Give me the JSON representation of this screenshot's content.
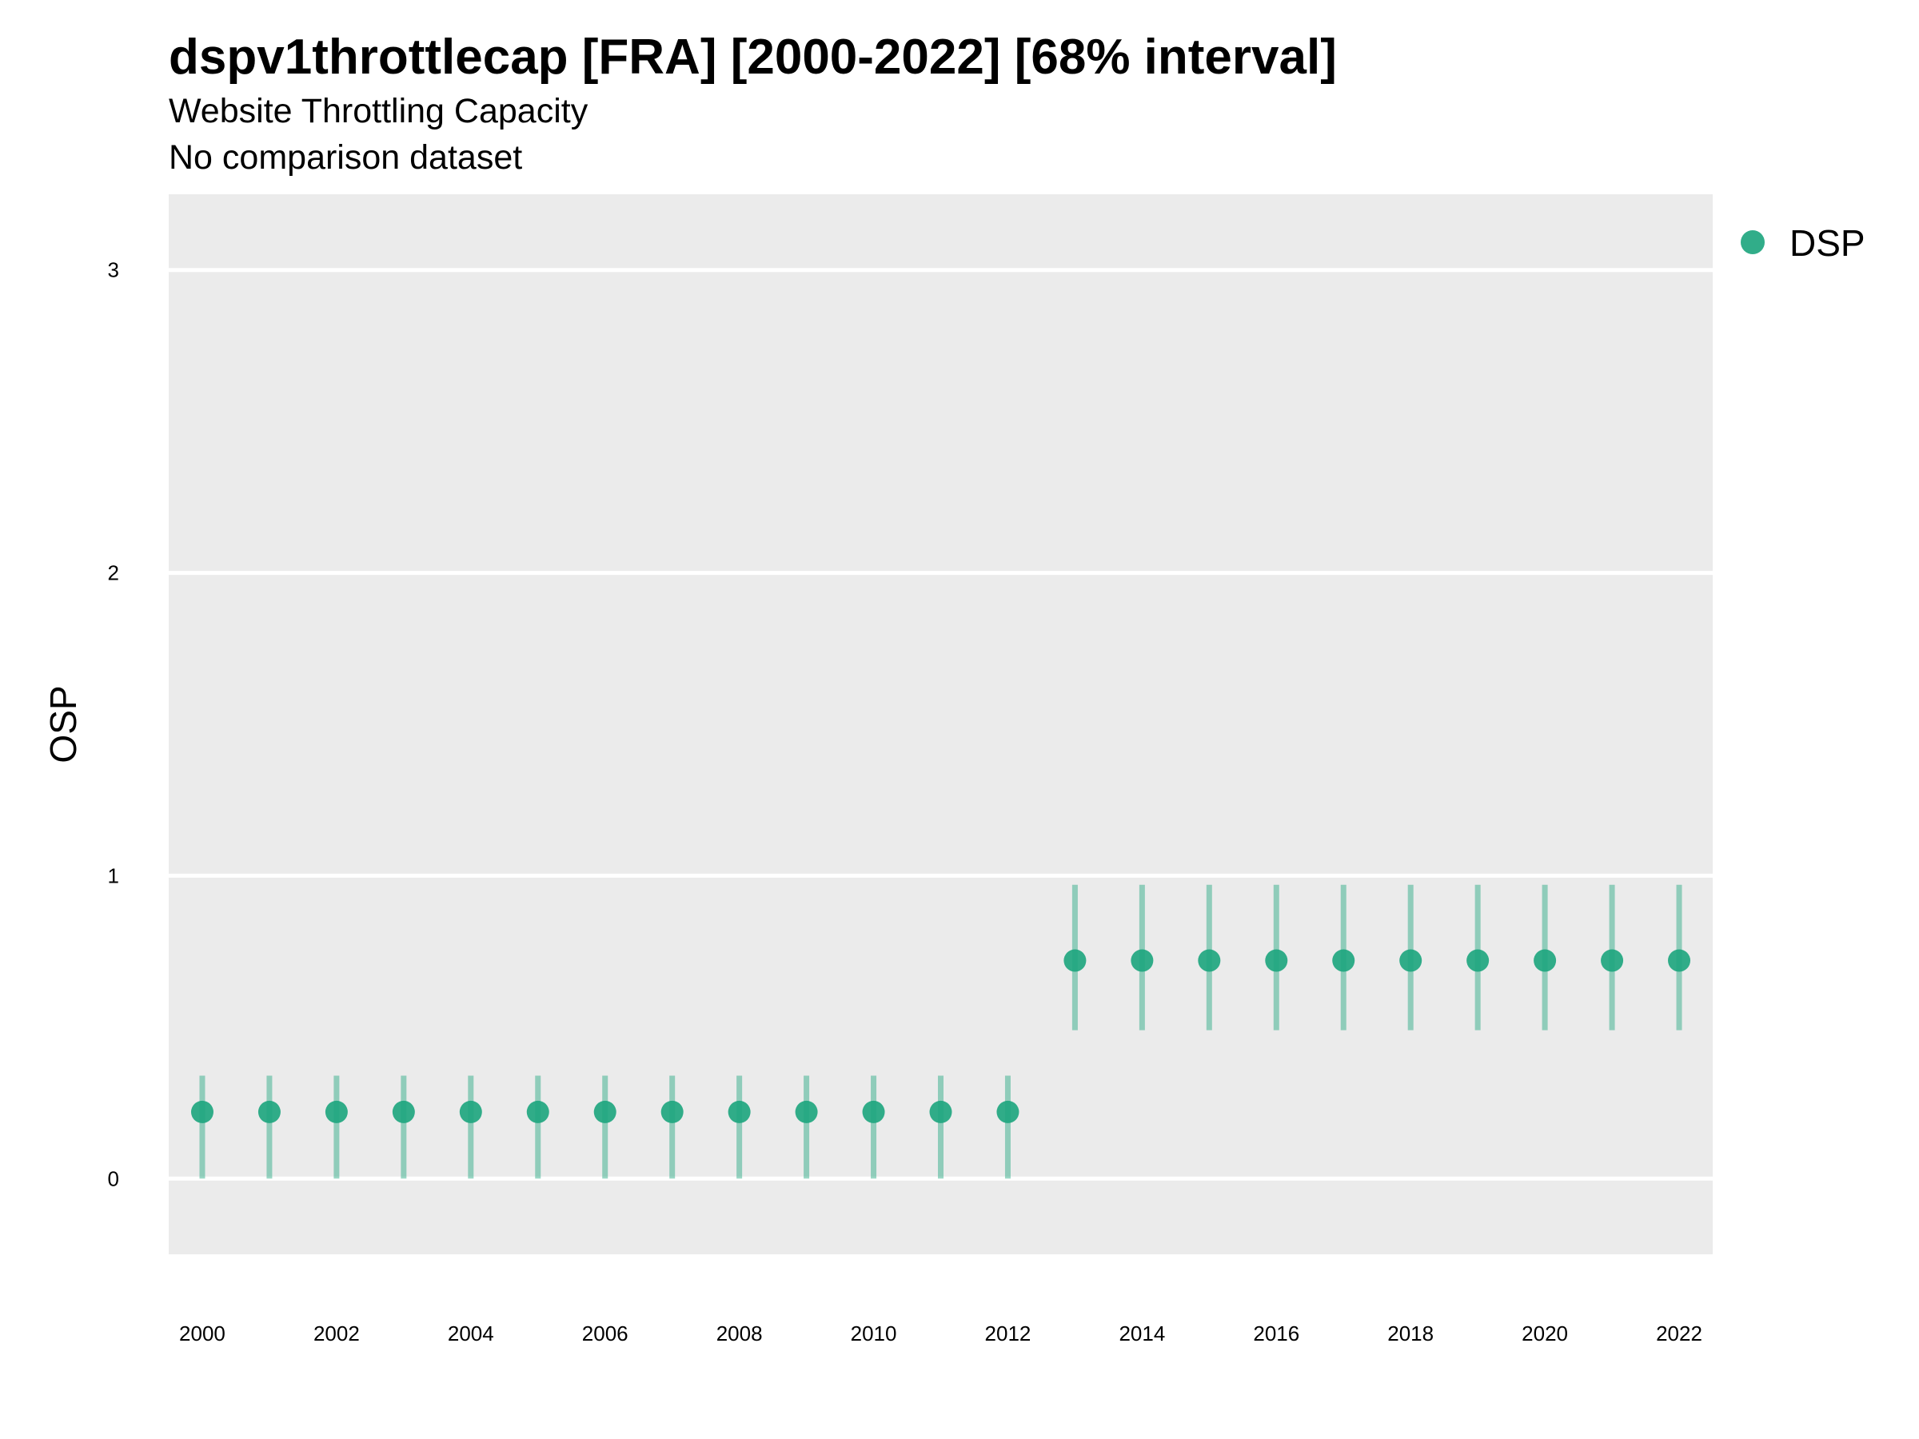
{
  "title": "dspv1throttlecap [FRA] [2000-2022] [68% interval]",
  "subtitle": "Website Throttling Capacity",
  "subtitle2": "No comparison dataset",
  "chart_data": {
    "type": "scatter",
    "title": "dspv1throttlecap [FRA] [2000-2022] [68% interval]",
    "subtitle": "Website Throttling Capacity",
    "ylabel": "OSP",
    "xlabel": "",
    "ylim": [
      -0.25,
      3.25
    ],
    "xlim": [
      1999.5,
      2022.5
    ],
    "yticks": [
      0,
      1,
      2,
      3
    ],
    "xticks": [
      2000,
      2002,
      2004,
      2006,
      2008,
      2010,
      2012,
      2014,
      2016,
      2018,
      2020,
      2022
    ],
    "grid": true,
    "legend_position": "right",
    "series": [
      {
        "name": "DSP",
        "color": "#1fa67f",
        "x": [
          2000,
          2001,
          2002,
          2003,
          2004,
          2005,
          2006,
          2007,
          2008,
          2009,
          2010,
          2011,
          2012,
          2013,
          2014,
          2015,
          2016,
          2017,
          2018,
          2019,
          2020,
          2021,
          2022
        ],
        "y": [
          0.22,
          0.22,
          0.22,
          0.22,
          0.22,
          0.22,
          0.22,
          0.22,
          0.22,
          0.22,
          0.22,
          0.22,
          0.22,
          0.72,
          0.72,
          0.72,
          0.72,
          0.72,
          0.72,
          0.72,
          0.72,
          0.72,
          0.72
        ],
        "lower": [
          0.0,
          0.0,
          0.0,
          0.0,
          0.0,
          0.0,
          0.0,
          0.0,
          0.0,
          0.0,
          0.0,
          0.0,
          0.0,
          0.49,
          0.49,
          0.49,
          0.49,
          0.49,
          0.49,
          0.49,
          0.49,
          0.49,
          0.49
        ],
        "upper": [
          0.34,
          0.34,
          0.34,
          0.34,
          0.34,
          0.34,
          0.34,
          0.34,
          0.34,
          0.34,
          0.34,
          0.34,
          0.34,
          0.97,
          0.97,
          0.97,
          0.97,
          0.97,
          0.97,
          0.97,
          0.97,
          0.97,
          0.97
        ]
      }
    ]
  }
}
